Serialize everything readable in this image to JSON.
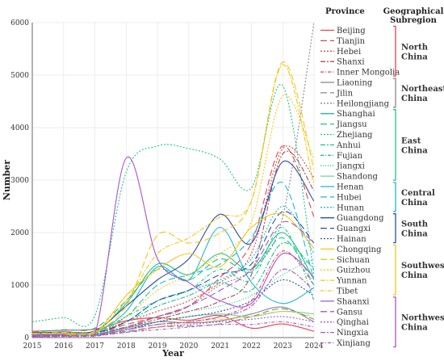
{
  "chart_data": {
    "type": "line",
    "title": "",
    "xlabel": "Year",
    "ylabel": "Number",
    "x": [
      "2015",
      "2016",
      "2017",
      "2018",
      "2019",
      "2020",
      "2021",
      "2022",
      "2023",
      "2024"
    ],
    "xlim": [
      2015,
      2024
    ],
    "ylim": [
      0,
      6000
    ],
    "yticks": [
      "0",
      "1000",
      "2000",
      "3000",
      "4000",
      "5000",
      "6000"
    ],
    "grid": true,
    "legend_header": "Province",
    "region_header": "Geographical Subregion",
    "series": [
      {
        "name": "Beijing",
        "region": "North China",
        "color": "#e8434b",
        "dash": "solid",
        "values": [
          120,
          140,
          160,
          320,
          380,
          330,
          420,
          180,
          260,
          120
        ]
      },
      {
        "name": "Tianjin",
        "region": "North China",
        "color": "#e8434b",
        "dash": "8,4",
        "values": [
          60,
          80,
          90,
          250,
          400,
          600,
          1150,
          1800,
          3650,
          2300
        ]
      },
      {
        "name": "Hebei",
        "region": "North China",
        "color": "#e8434b",
        "dash": "2,2",
        "values": [
          80,
          100,
          110,
          300,
          500,
          700,
          1050,
          1600,
          3600,
          3050
        ]
      },
      {
        "name": "Shanxi",
        "region": "North China",
        "color": "#b04a55",
        "dash": "6,2,2,2",
        "values": [
          70,
          90,
          100,
          200,
          350,
          500,
          700,
          1200,
          3500,
          2800
        ]
      },
      {
        "name": "Inner Mongolia",
        "region": "North China",
        "color": "#e8434b",
        "dash": "4,2,1,2",
        "values": [
          40,
          50,
          60,
          150,
          250,
          300,
          400,
          700,
          1650,
          1000
        ]
      },
      {
        "name": "Liaoning",
        "region": "Northeast China",
        "color": "#888888",
        "dash": "solid",
        "values": [
          30,
          40,
          60,
          180,
          300,
          280,
          320,
          450,
          580,
          300
        ]
      },
      {
        "name": "Jilin",
        "region": "Northeast China",
        "color": "#888888",
        "dash": "8,4",
        "values": [
          20,
          30,
          40,
          120,
          200,
          220,
          260,
          400,
          550,
          350
        ]
      },
      {
        "name": "Heilongjiang",
        "region": "Northeast China",
        "color": "#888888",
        "dash": "2,2",
        "values": [
          60,
          70,
          80,
          200,
          400,
          600,
          1000,
          1300,
          2300,
          6000
        ]
      },
      {
        "name": "Shanghai",
        "region": "East China",
        "color": "#1dc38a",
        "dash": "solid",
        "values": [
          80,
          100,
          120,
          650,
          1400,
          1200,
          1600,
          1300,
          2000,
          1100
        ]
      },
      {
        "name": "Jiangsu",
        "region": "East China",
        "color": "#1dc38a",
        "dash": "8,4",
        "values": [
          100,
          150,
          180,
          700,
          1300,
          1100,
          1500,
          1250,
          1900,
          1000
        ]
      },
      {
        "name": "Zhejiang",
        "region": "East China",
        "color": "#1dc38a",
        "dash": "2,2",
        "values": [
          300,
          380,
          420,
          3150,
          3650,
          3600,
          3400,
          2850,
          4800,
          1200
        ]
      },
      {
        "name": "Anhui",
        "region": "East China",
        "color": "#1dc38a",
        "dash": "6,2,2,2",
        "values": [
          50,
          70,
          90,
          300,
          600,
          800,
          1050,
          900,
          1800,
          1300
        ]
      },
      {
        "name": "Fujian",
        "region": "East China",
        "color": "#1dc38a",
        "dash": "4,2,1,2",
        "values": [
          60,
          80,
          100,
          400,
          700,
          900,
          1300,
          1100,
          2100,
          700
        ]
      },
      {
        "name": "Jiangxi",
        "region": "East China",
        "color": "#1dc38a",
        "dash": "1,2",
        "values": [
          40,
          60,
          70,
          200,
          400,
          500,
          600,
          800,
          1200,
          1500
        ]
      },
      {
        "name": "Shandong",
        "region": "East China",
        "color": "#6fd4a8",
        "dash": "solid",
        "values": [
          30,
          40,
          50,
          150,
          300,
          400,
          450,
          400,
          500,
          450
        ]
      },
      {
        "name": "Henan",
        "region": "Central China",
        "color": "#1fb7d6",
        "dash": "solid",
        "values": [
          70,
          90,
          110,
          500,
          1350,
          1100,
          2100,
          1050,
          650,
          950
        ]
      },
      {
        "name": "Hubei",
        "region": "Central China",
        "color": "#1fb7d6",
        "dash": "8,4",
        "values": [
          60,
          80,
          100,
          400,
          1000,
          1200,
          1400,
          1900,
          2950,
          1100
        ]
      },
      {
        "name": "Hunan",
        "region": "Central China",
        "color": "#1fb7d6",
        "dash": "2,2",
        "values": [
          50,
          60,
          80,
          300,
          700,
          900,
          1100,
          1500,
          2500,
          1600
        ]
      },
      {
        "name": "Guangdong",
        "region": "South China",
        "color": "#2d4fa0",
        "dash": "solid",
        "values": [
          90,
          110,
          130,
          600,
          1100,
          1500,
          2350,
          1800,
          3350,
          2600
        ]
      },
      {
        "name": "Guangxi",
        "region": "South China",
        "color": "#2d4fa0",
        "dash": "8,4",
        "values": [
          50,
          70,
          90,
          300,
          700,
          900,
          1200,
          1400,
          2400,
          1800
        ]
      },
      {
        "name": "Hainan",
        "region": "South China",
        "color": "#2d4fa0",
        "dash": "2,2",
        "values": [
          30,
          40,
          50,
          150,
          300,
          400,
          500,
          700,
          1100,
          800
        ]
      },
      {
        "name": "Chongqing",
        "region": "Southwest China",
        "color": "#f5c518",
        "dash": "solid",
        "values": [
          50,
          70,
          90,
          800,
          1300,
          1600,
          1350,
          2100,
          2350,
          1700
        ]
      },
      {
        "name": "Sichuan",
        "region": "Southwest China",
        "color": "#f5c518",
        "dash": "8,4",
        "values": [
          80,
          100,
          120,
          600,
          1950,
          1800,
          2000,
          2600,
          5250,
          3200
        ]
      },
      {
        "name": "Guizhou",
        "region": "Southwest China",
        "color": "#f5c518",
        "dash": "2,2",
        "values": [
          60,
          80,
          100,
          400,
          900,
          1200,
          1600,
          2200,
          4600,
          3400
        ]
      },
      {
        "name": "Yunnan",
        "region": "Southwest China",
        "color": "#f5c518",
        "dash": "6,2,2,2",
        "values": [
          70,
          90,
          110,
          700,
          1600,
          1900,
          2300,
          2600,
          5200,
          2900
        ]
      },
      {
        "name": "Tibet",
        "region": "Southwest China",
        "color": "#f5c518",
        "dash": "4,2,1,2",
        "values": [
          20,
          30,
          40,
          100,
          200,
          300,
          350,
          400,
          500,
          400
        ]
      },
      {
        "name": "Shaanxi",
        "region": "Northwest China",
        "color": "#a855c8",
        "dash": "solid",
        "values": [
          50,
          60,
          80,
          3420,
          1500,
          1050,
          700,
          650,
          1600,
          1150
        ]
      },
      {
        "name": "Gansu",
        "region": "Northwest China",
        "color": "#a855c8",
        "dash": "8,4",
        "values": [
          30,
          40,
          50,
          200,
          400,
          600,
          900,
          1300,
          2200,
          1800
        ]
      },
      {
        "name": "Qinghai",
        "region": "Northwest China",
        "color": "#a855c8",
        "dash": "2,2",
        "values": [
          20,
          30,
          40,
          100,
          200,
          250,
          300,
          350,
          400,
          300
        ]
      },
      {
        "name": "Ningxia",
        "region": "Northwest China",
        "color": "#a855c8",
        "dash": "6,2,2,2",
        "values": [
          20,
          30,
          40,
          150,
          250,
          300,
          400,
          600,
          1300,
          900
        ]
      },
      {
        "name": "Xinjiang",
        "region": "Northwest China",
        "color": "#a855c8",
        "dash": "4,2,1,2",
        "values": [
          10,
          20,
          30,
          100,
          150,
          200,
          250,
          250,
          300,
          200
        ]
      }
    ],
    "regions": [
      {
        "name": "North China",
        "lines": [
          "North",
          "China"
        ],
        "color": "#e8434b",
        "first": 0,
        "last": 4
      },
      {
        "name": "Northeast China",
        "lines": [
          "Northeast",
          "China"
        ],
        "color": "#888888",
        "first": 5,
        "last": 7
      },
      {
        "name": "East China",
        "lines": [
          "East",
          "China"
        ],
        "color": "#1dc38a",
        "first": 8,
        "last": 14
      },
      {
        "name": "Central China",
        "lines": [
          "Central",
          "China"
        ],
        "color": "#1fb7d6",
        "first": 15,
        "last": 17
      },
      {
        "name": "South China",
        "lines": [
          "South",
          "China"
        ],
        "color": "#2d4fa0",
        "first": 18,
        "last": 20
      },
      {
        "name": "Southwest China",
        "lines": [
          "Southwest",
          "China"
        ],
        "color": "#f5c518",
        "first": 21,
        "last": 25
      },
      {
        "name": "Northwest China",
        "lines": [
          "Northwest",
          "China"
        ],
        "color": "#a855c8",
        "first": 26,
        "last": 30
      }
    ]
  }
}
